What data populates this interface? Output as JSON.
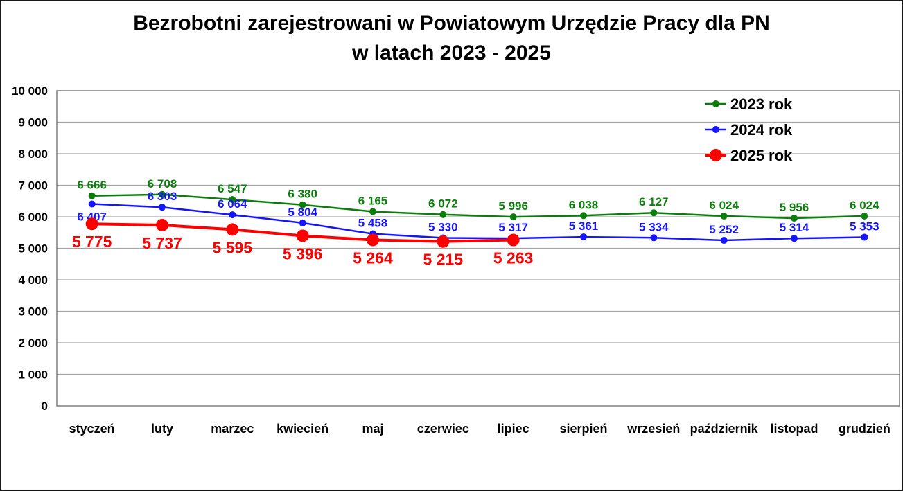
{
  "chart_data": {
    "type": "line",
    "title": {
      "line1": "Bezrobotni zarejestrowani w Powiatowym Urzędzie Pracy dla PN",
      "line2": "w latach 2023 - 2025"
    },
    "categories": [
      "styczeń",
      "luty",
      "marzec",
      "kwiecień",
      "maj",
      "czerwiec",
      "lipiec",
      "sierpień",
      "wrzesień",
      "październik",
      "listopad",
      "grudzień"
    ],
    "y_axis": {
      "min": 0,
      "max": 10000,
      "step": 1000,
      "tick_labels": [
        "0",
        "1 000",
        "2 000",
        "3 000",
        "4 000",
        "5 000",
        "6 000",
        "7 000",
        "8 000",
        "9 000",
        "10 000"
      ]
    },
    "grid": "horizontal-only",
    "legend_position": "top-right-inside",
    "legend_entries": [
      "2023 rok",
      "2024 rok",
      "2025 rok"
    ],
    "series": [
      {
        "name": "2023 rok",
        "color": "#0b7d0b",
        "values": [
          6666,
          6708,
          6547,
          6380,
          6165,
          6072,
          5996,
          6038,
          6127,
          6024,
          5956,
          6024
        ],
        "labels": [
          "6 666",
          "6 708",
          "6 547",
          "6 380",
          "6 165",
          "6 072",
          "5 996",
          "6 038",
          "6 127",
          "6 024",
          "5 956",
          "6 024"
        ],
        "label_side": "above",
        "label_side_overrides": {},
        "marker_radius": 5,
        "line_width": 2.5,
        "label_size": 17
      },
      {
        "name": "2024 rok",
        "color": "#1414ff",
        "values": [
          6407,
          6303,
          6064,
          5804,
          5458,
          5330,
          5317,
          5361,
          5334,
          5252,
          5314,
          5353
        ],
        "labels": [
          "6 407",
          "6 303",
          "6 064",
          "5 804",
          "5 458",
          "5 330",
          "5 317",
          "5 361",
          "5 334",
          "5 252",
          "5 314",
          "5 353"
        ],
        "label_side": "above",
        "label_side_overrides": {
          "0": "below"
        },
        "marker_radius": 5,
        "line_width": 2.5,
        "label_size": 17
      },
      {
        "name": "2025 rok",
        "color": "#ff0000",
        "values": [
          5775,
          5737,
          5595,
          5396,
          5264,
          5215,
          5263
        ],
        "labels": [
          "5 775",
          "5 737",
          "5 595",
          "5 396",
          "5 264",
          "5 215",
          "5 263"
        ],
        "label_side": "below",
        "label_side_overrides": {},
        "marker_radius": 9,
        "line_width": 4,
        "label_size": 23
      }
    ],
    "colors": {
      "gridline": "#a6a6a6",
      "plot_border": "#7f7f7f",
      "axis_text": "#000000",
      "legend_text": "#000000",
      "background": "#ffffff"
    }
  }
}
